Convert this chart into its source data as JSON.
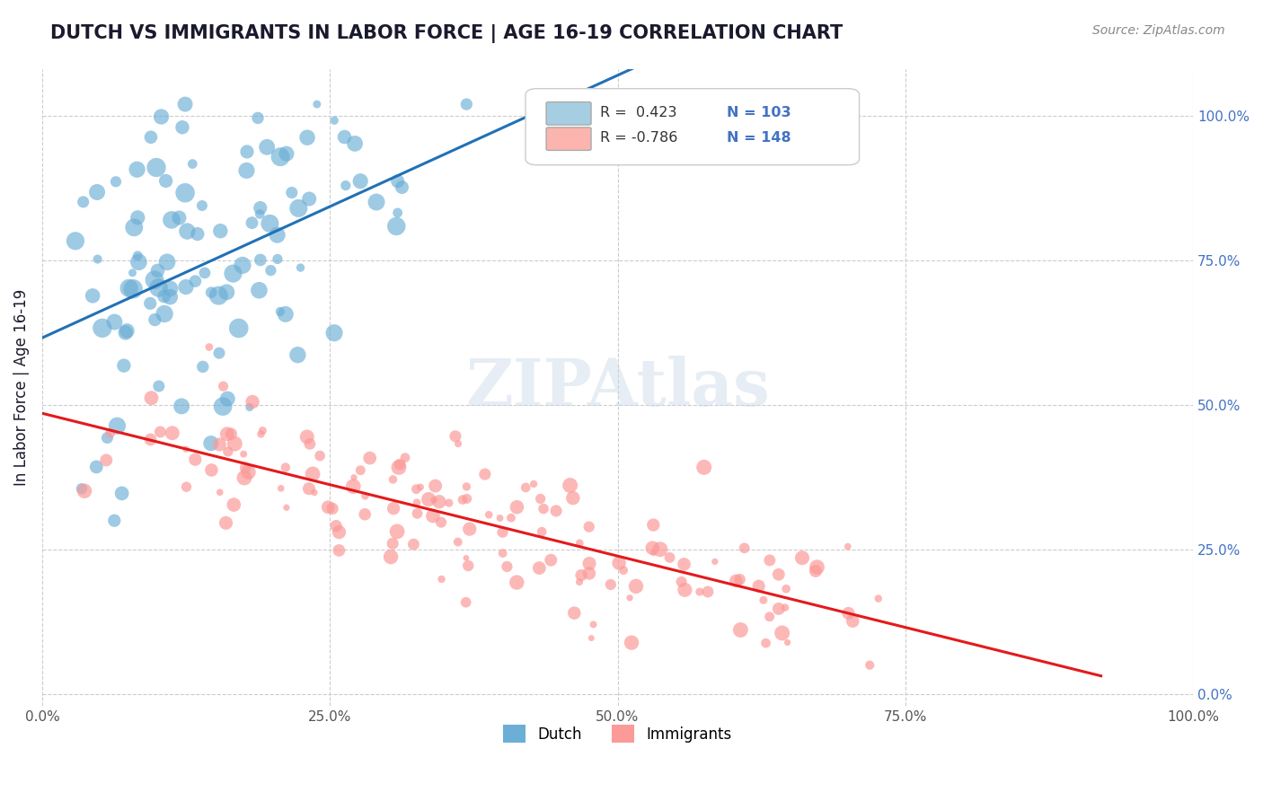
{
  "title": "DUTCH VS IMMIGRANTS IN LABOR FORCE | AGE 16-19 CORRELATION CHART",
  "source": "Source: ZipAtlas.com",
  "xlabel": "",
  "ylabel": "In Labor Force | Age 16-19",
  "r_dutch": 0.423,
  "n_dutch": 103,
  "r_immigrants": -0.786,
  "n_immigrants": 148,
  "blue_color": "#6baed6",
  "blue_line_color": "#2171b5",
  "pink_color": "#fb9a99",
  "pink_line_color": "#e31a1c",
  "legend_box_blue": "#a6cee3",
  "legend_box_pink": "#fbb4ae",
  "watermark": "ZIPAtlas",
  "xlim": [
    0.0,
    1.0
  ],
  "ylim": [
    0.0,
    1.05
  ],
  "x_ticks": [
    0.0,
    0.25,
    0.5,
    0.75,
    1.0
  ],
  "x_tick_labels": [
    "0.0%",
    "25.0%",
    "50.0%",
    "75.0%",
    "100.0%"
  ],
  "y_ticks_right": [
    0.0,
    0.25,
    0.5,
    0.75,
    1.0
  ],
  "y_tick_labels_right": [
    "0.0%",
    "25.0%",
    "50.0%",
    "75.0%",
    "100.0%"
  ],
  "title_color": "#1a1a2e",
  "axis_label_color": "#1a1a2e",
  "tick_color": "#555555",
  "grid_color": "#cccccc",
  "background_color": "#ffffff",
  "figsize": [
    14.06,
    8.92
  ],
  "dpi": 100
}
